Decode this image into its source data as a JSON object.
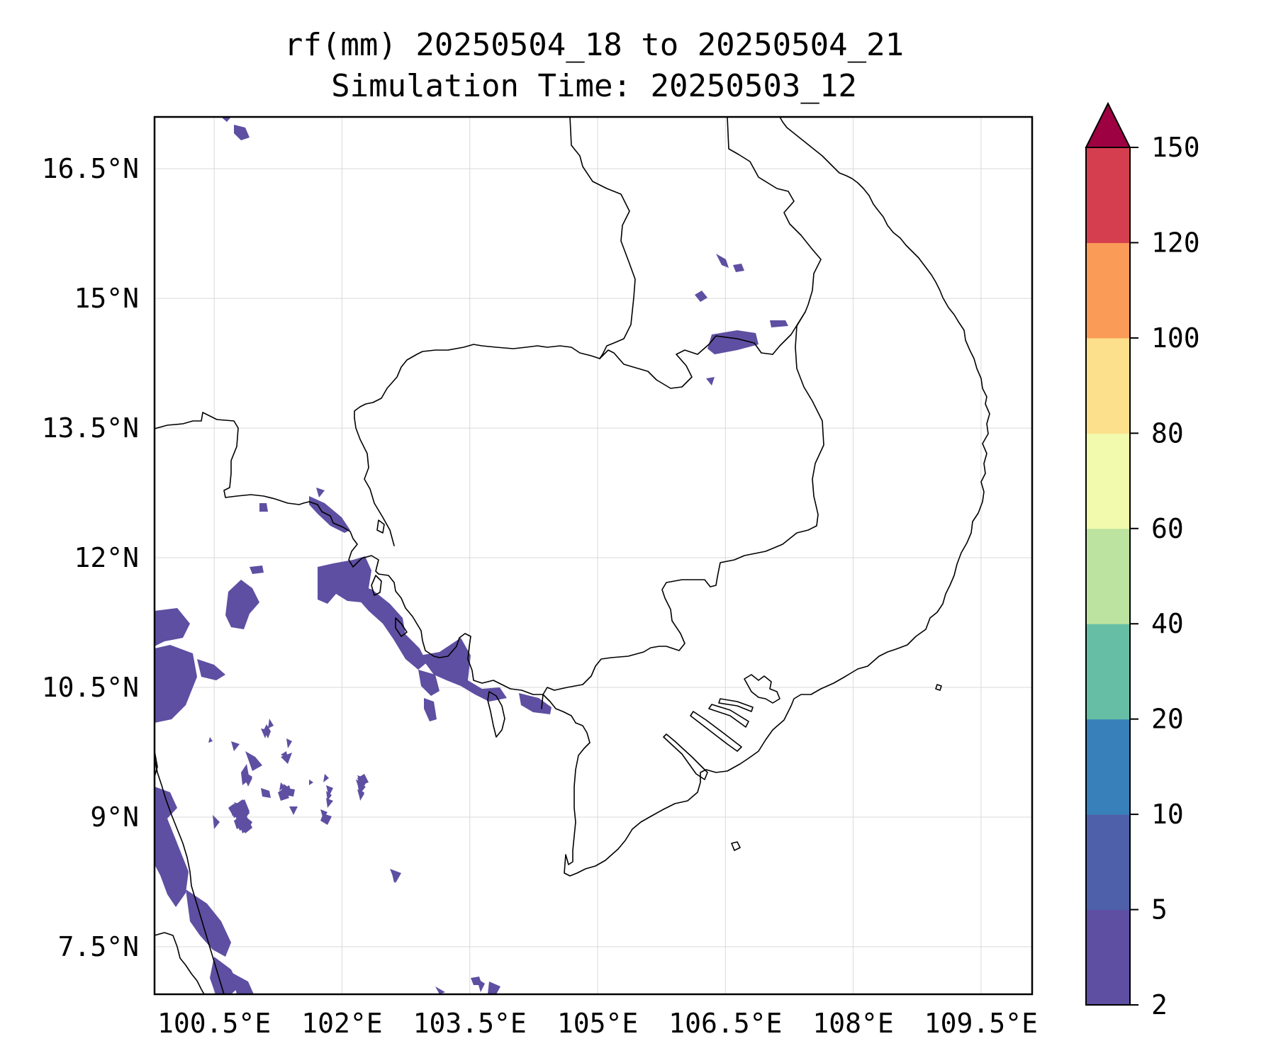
{
  "map": {
    "title_line1": "rf(mm) 20250504_18 to 20250504_21",
    "title_line2": "Simulation Time: 20250503_12",
    "lon_range": [
      99.8,
      110.1
    ],
    "lat_range": [
      6.95,
      17.1
    ],
    "x_ticks": [
      {
        "value": 100.5,
        "label": "100.5°E"
      },
      {
        "value": 102.0,
        "label": "102°E"
      },
      {
        "value": 103.5,
        "label": "103.5°E"
      },
      {
        "value": 105.0,
        "label": "105°E"
      },
      {
        "value": 106.5,
        "label": "106.5°E"
      },
      {
        "value": 108.0,
        "label": "108°E"
      },
      {
        "value": 109.5,
        "label": "109.5°E"
      }
    ],
    "y_ticks": [
      {
        "value": 16.5,
        "label": "16.5°N"
      },
      {
        "value": 15.0,
        "label": "15°N"
      },
      {
        "value": 13.5,
        "label": "13.5°N"
      },
      {
        "value": 12.0,
        "label": "12°N"
      },
      {
        "value": 10.5,
        "label": "10.5°N"
      },
      {
        "value": 9.0,
        "label": "9°N"
      },
      {
        "value": 7.5,
        "label": "7.5°N"
      }
    ],
    "gridlines": true,
    "rain_color_2_5": "#5e4fa2"
  },
  "colorbar": {
    "extend": "max",
    "levels": [
      {
        "label": "2",
        "color": "#5e4fa2"
      },
      {
        "label": "5",
        "color": "#4f60aa"
      },
      {
        "label": "10",
        "color": "#3880b9"
      },
      {
        "label": "20",
        "color": "#66bfa5"
      },
      {
        "label": "40",
        "color": "#bde3a0"
      },
      {
        "label": "60",
        "color": "#f1faad"
      },
      {
        "label": "80",
        "color": "#fde08b"
      },
      {
        "label": "100",
        "color": "#fa9b58"
      },
      {
        "label": "120",
        "color": "#d53e4f"
      },
      {
        "label": "150",
        "color": ""
      }
    ],
    "overflow_color": "#9e0142"
  }
}
